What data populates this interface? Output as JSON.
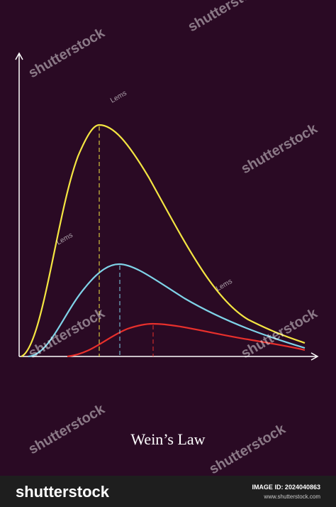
{
  "title": "Wein’s Law",
  "watermarks": [
    "shutterstock",
    "Lems"
  ],
  "footer": {
    "logo": "shutterstock",
    "image_id": "IMAGE ID: 2024040863",
    "site": "www.shutterstock.com"
  }
}
